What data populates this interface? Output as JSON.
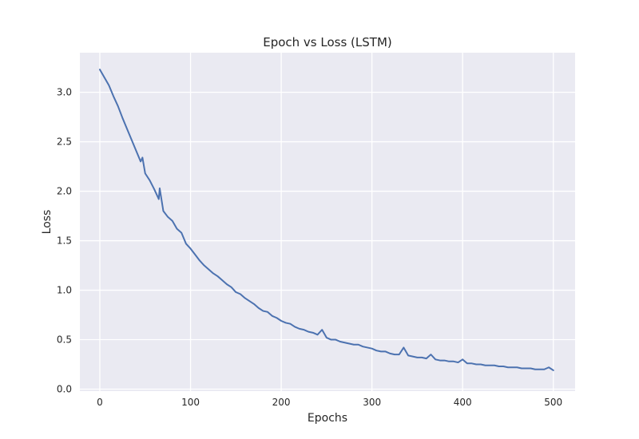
{
  "chart_data": {
    "type": "line",
    "title": "Epoch vs Loss (LSTM)",
    "xlabel": "Epochs",
    "ylabel": "Loss",
    "xlim": [
      -22,
      524
    ],
    "ylim": [
      -0.02,
      3.4
    ],
    "grid": true,
    "legend": "none",
    "x_ticks": [
      0,
      100,
      200,
      300,
      400,
      500
    ],
    "y_ticks": [
      0.0,
      0.5,
      1.0,
      1.5,
      2.0,
      2.5,
      3.0
    ],
    "x_tick_labels": [
      "0",
      "100",
      "200",
      "300",
      "400",
      "500"
    ],
    "y_tick_labels": [
      "0.0",
      "0.5",
      "1.0",
      "1.5",
      "2.0",
      "2.5",
      "3.0"
    ],
    "colors": {
      "line": "#4c72b0",
      "plot_bg": "#eaeaf2",
      "grid": "#ffffff"
    },
    "series": [
      {
        "x": [
          0,
          5,
          10,
          15,
          20,
          25,
          30,
          35,
          40,
          45,
          47,
          50,
          55,
          60,
          65,
          66,
          70,
          75,
          80,
          85,
          90,
          95,
          100,
          105,
          110,
          115,
          120,
          125,
          130,
          135,
          140,
          145,
          150,
          155,
          160,
          165,
          170,
          175,
          180,
          185,
          190,
          195,
          200,
          205,
          210,
          215,
          220,
          225,
          230,
          235,
          240,
          245,
          250,
          255,
          260,
          265,
          270,
          275,
          280,
          285,
          290,
          295,
          300,
          305,
          310,
          315,
          320,
          325,
          330,
          335,
          340,
          345,
          350,
          355,
          360,
          365,
          370,
          375,
          380,
          385,
          390,
          395,
          400,
          405,
          410,
          415,
          420,
          425,
          430,
          435,
          440,
          445,
          450,
          455,
          460,
          465,
          470,
          475,
          480,
          485,
          490,
          495,
          500
        ],
        "values": [
          3.23,
          3.15,
          3.07,
          2.96,
          2.86,
          2.74,
          2.63,
          2.52,
          2.41,
          2.3,
          2.34,
          2.18,
          2.11,
          2.02,
          1.92,
          2.03,
          1.8,
          1.74,
          1.7,
          1.62,
          1.58,
          1.47,
          1.42,
          1.36,
          1.3,
          1.25,
          1.21,
          1.17,
          1.14,
          1.1,
          1.06,
          1.03,
          0.98,
          0.96,
          0.92,
          0.89,
          0.86,
          0.82,
          0.79,
          0.78,
          0.74,
          0.72,
          0.69,
          0.67,
          0.66,
          0.63,
          0.61,
          0.6,
          0.58,
          0.57,
          0.55,
          0.6,
          0.52,
          0.5,
          0.5,
          0.48,
          0.47,
          0.46,
          0.45,
          0.45,
          0.43,
          0.42,
          0.41,
          0.39,
          0.38,
          0.38,
          0.36,
          0.35,
          0.35,
          0.42,
          0.34,
          0.33,
          0.32,
          0.32,
          0.31,
          0.35,
          0.3,
          0.29,
          0.29,
          0.28,
          0.28,
          0.27,
          0.3,
          0.26,
          0.26,
          0.25,
          0.25,
          0.24,
          0.24,
          0.24,
          0.23,
          0.23,
          0.22,
          0.22,
          0.22,
          0.21,
          0.21,
          0.21,
          0.2,
          0.2,
          0.2,
          0.22,
          0.19
        ]
      }
    ]
  }
}
